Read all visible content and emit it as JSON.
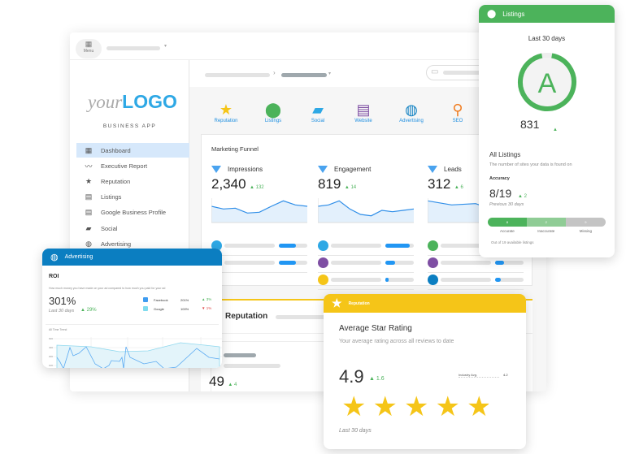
{
  "app": {
    "menu_label": "Menu",
    "logo_light": "your",
    "logo_bold": "LOGO",
    "subtitle": "BUSINESS APP"
  },
  "sidebar": {
    "items": [
      {
        "label": "Dashboard",
        "icon": "dashboard-icon",
        "active": true
      },
      {
        "label": "Executive Report",
        "icon": "trend-icon"
      },
      {
        "label": "Reputation",
        "icon": "star-icon"
      },
      {
        "label": "Listings",
        "icon": "store-icon"
      },
      {
        "label": "Google Business Profile",
        "icon": "store-icon"
      },
      {
        "label": "Social",
        "icon": "chat-icon"
      },
      {
        "label": "Advertising",
        "icon": "globe-icon"
      }
    ]
  },
  "apps": [
    {
      "label": "Reputation",
      "icon": "star-icon",
      "color": "#f5c518"
    },
    {
      "label": "Listings",
      "icon": "pin-icon",
      "color": "#4cb35b"
    },
    {
      "label": "Social",
      "icon": "chat-icon",
      "color": "#2ea8e5"
    },
    {
      "label": "Website",
      "icon": "website-icon",
      "color": "#7e4ea3"
    },
    {
      "label": "Advertising",
      "icon": "globe-icon",
      "color": "#0b7ec1"
    },
    {
      "label": "SEO",
      "icon": "search-icon",
      "color": "#f07f25"
    }
  ],
  "funnel": {
    "title": "Marketing Funnel",
    "columns": [
      {
        "label": "Impressions",
        "value": "2,340",
        "delta": "132",
        "trend": [
          6,
          5,
          5.3,
          3.5,
          3.8,
          6,
          8,
          6.5,
          6
        ]
      },
      {
        "label": "Engagement",
        "value": "819",
        "delta": "14",
        "trend": [
          6,
          6.5,
          8,
          5,
          3,
          2.5,
          4.5,
          4,
          4.5,
          5
        ]
      },
      {
        "label": "Leads",
        "value": "312",
        "delta": "6",
        "trend": [
          8,
          6.5,
          7,
          4,
          4.5
        ]
      }
    ]
  },
  "reputation_section": {
    "title": "Reputation",
    "value": "49",
    "delta": "4"
  },
  "advertising": {
    "header": "Advertising",
    "title": "ROI",
    "description": "How much money you have made on your ad compared to how much you paid for your ad",
    "value": "301%",
    "delta": "29%",
    "period": "Last 30 days",
    "legend": [
      {
        "name": "Facebook",
        "value": "201%",
        "delta": "3%",
        "direction": "up",
        "color": "#3f9cf0"
      },
      {
        "name": "Google",
        "value": "100%",
        "delta": "1%",
        "direction": "down",
        "color": "#7fdbee"
      }
    ],
    "chart_title": "All Time Trend"
  },
  "listings": {
    "header": "Listings",
    "period": "Last 30 days",
    "grade": "A",
    "score": "831",
    "score_fraction": 0.94,
    "section_title": "All Listings",
    "section_desc": "The number of sites your data is found on",
    "accuracy_label": "Accuracy",
    "accuracy_value": "8/19",
    "accuracy_delta": "2",
    "accuracy_period": "Previous 30 days",
    "segments": [
      {
        "count": "8",
        "label": "Accurate",
        "color": "#4cb35b"
      },
      {
        "count": "2",
        "label": "Inaccurate",
        "color": "#8fcc95"
      },
      {
        "count": "9",
        "label": "Missing",
        "color": "#c4c4c4"
      }
    ],
    "footnote": "Out of 19 available listings"
  },
  "rating": {
    "header": "Reputation",
    "title": "Average Star Rating",
    "description": "Your average rating across all reviews to date",
    "value": "4.9",
    "delta": "1.6",
    "industry_label": "Industry Avg.",
    "industry_value": "4.2",
    "stars": 4.9,
    "period": "Last 30 days"
  }
}
